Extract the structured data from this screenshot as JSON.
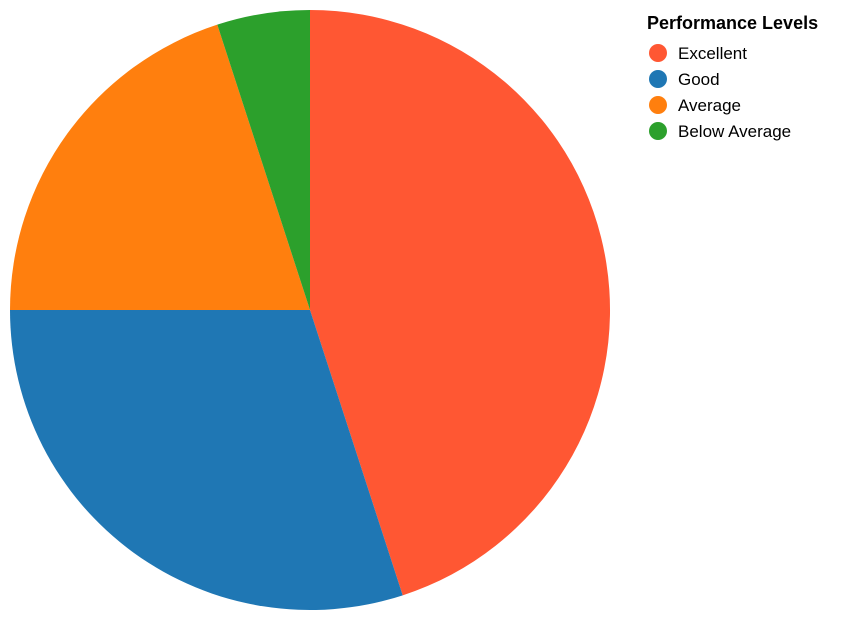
{
  "chart_data": {
    "type": "pie",
    "title": "",
    "categories": [
      "Excellent",
      "Good",
      "Average",
      "Below Average"
    ],
    "values": [
      45,
      30,
      20,
      5
    ],
    "colors": [
      "#FF5733",
      "#1F77B4",
      "#FF7F0E",
      "#2CA02C"
    ],
    "legend": {
      "title": "Performance Levels",
      "position": "top-right",
      "entries": [
        "Excellent",
        "Good",
        "Average",
        "Below Average"
      ]
    },
    "start_angle_deg": 0,
    "direction": "clockwise"
  }
}
